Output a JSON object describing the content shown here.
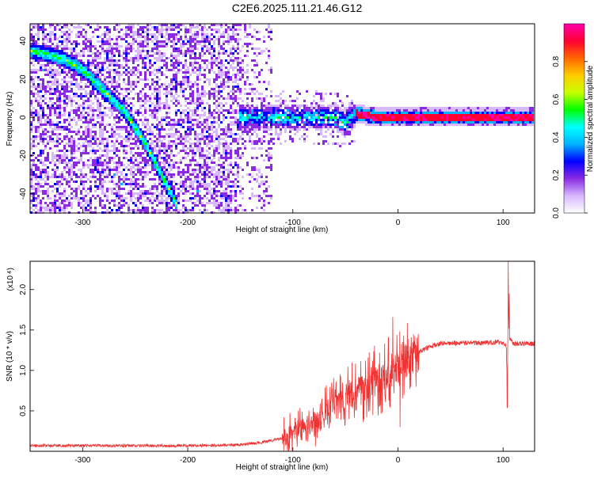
{
  "title": "C2E6.2025.111.21.46.G12",
  "chart_data": [
    {
      "type": "heatmap",
      "xlabel": "Height of straight line (km)",
      "ylabel": "Frequency (Hz)",
      "xlim": [
        -350,
        130
      ],
      "ylim": [
        -50,
        49
      ],
      "xticks": [
        -300,
        -200,
        -100,
        0,
        100
      ],
      "yticks": [
        -40,
        -20,
        0,
        20,
        40
      ],
      "colorbar": {
        "label": "Normalized spectral amplitude",
        "range": [
          0,
          1
        ],
        "ticks": [
          "0.0",
          "0.2",
          "0.4",
          "0.6",
          "0.8"
        ],
        "tick_values": [
          0.0,
          0.2,
          0.4,
          0.6,
          0.8
        ]
      },
      "traces": [
        {
          "x": [
            -350,
            -320,
            -300,
            -280,
            -260,
            -240,
            -225,
            -210
          ],
          "y": [
            35,
            31,
            25,
            14,
            3,
            -14,
            -30,
            -46
          ]
        },
        {
          "x": [
            -150,
            -120,
            -100,
            -80,
            -60,
            -50,
            -45,
            -40,
            -30,
            -20,
            -10,
            0,
            130
          ],
          "y": [
            0,
            0,
            0,
            0,
            0,
            -3,
            0,
            2,
            1,
            0,
            0,
            0,
            0
          ]
        }
      ],
      "colors": [
        "#ffffff",
        "#d8b8ff",
        "#8a2be2",
        "#0000ff",
        "#00b4ff",
        "#00ffff",
        "#00ff00",
        "#c8ff00",
        "#ffcc00",
        "#ff6600",
        "#ff0033",
        "#ff00aa"
      ]
    },
    {
      "type": "line",
      "xlabel": "Height of straight line (km)",
      "ylabel": "SNR (10 * v/v)",
      "exponent_label": "(x10",
      "exponent_power": "4",
      "exponent_close": ")",
      "xlim": [
        -350,
        130
      ],
      "ylim": [
        0,
        23500
      ],
      "xticks": [
        -300,
        -200,
        -100,
        0,
        100
      ],
      "yticks": [
        5000,
        10000,
        15000,
        20000
      ],
      "ytick_labels": [
        "0.5",
        "1.0",
        "1.5",
        "2.0"
      ],
      "color": "#ee3333",
      "envelope": {
        "x": [
          -350,
          -200,
          -150,
          -130,
          -110,
          -100,
          -90,
          -80,
          -70,
          -60,
          -50,
          -40,
          -30,
          -20,
          -10,
          0,
          10,
          20,
          30,
          40,
          60,
          80,
          95,
          100,
          103,
          104,
          105,
          106,
          110,
          130
        ],
        "y": [
          700,
          700,
          800,
          1100,
          1600,
          2200,
          2800,
          3500,
          4500,
          5500,
          6500,
          7200,
          8000,
          8800,
          9500,
          10500,
          11600,
          12300,
          12900,
          13300,
          13400,
          13400,
          13500,
          13400,
          13000,
          8000,
          19000,
          14000,
          13300,
          13300
        ]
      },
      "spikes": [
        {
          "x": -5,
          "y": 16600
        },
        {
          "x": 2,
          "y": 3000
        },
        {
          "x": 104,
          "y": 5400
        },
        {
          "x": 105,
          "y": 23500
        },
        {
          "x": 106,
          "y": 19500
        }
      ]
    }
  ]
}
